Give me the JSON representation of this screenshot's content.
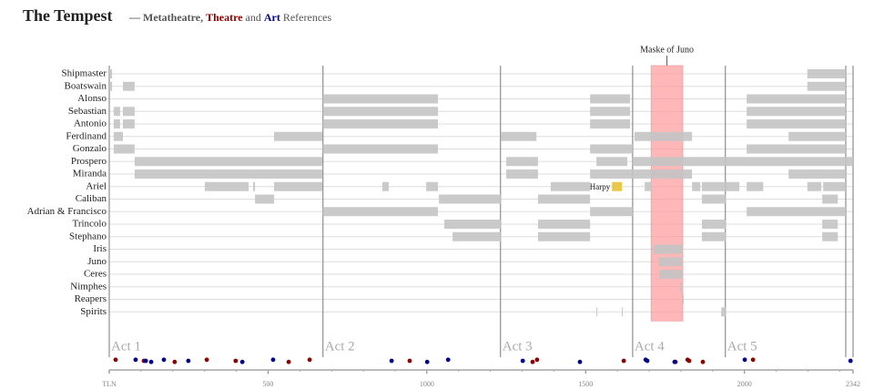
{
  "chart_data": {
    "type": "timeline",
    "title": "The Tempest",
    "subtitle_parts": [
      "— Metatheatre,",
      "and",
      "References"
    ],
    "xlim": [
      0,
      2342
    ],
    "xticks": [
      {
        "value": 0,
        "label": "TLN"
      },
      500,
      1000,
      1500,
      2000,
      2342
    ],
    "acts": [
      "Act 1",
      "Act 2",
      "Act 3",
      "Act 4",
      "Act 5"
    ],
    "act_lines": [
      0,
      673,
      1232,
      1648,
      1940,
      2319
    ],
    "bar_color": "#c4c4c4",
    "characters": [
      {
        "name": "Shipmaster",
        "segments": [
          [
            0,
            9
          ],
          [
            2198,
            2319
          ]
        ]
      },
      {
        "name": "Boatswain",
        "segments": [
          [
            0,
            9
          ],
          [
            43,
            80
          ],
          [
            2198,
            2319
          ]
        ]
      },
      {
        "name": "Alonso",
        "segments": [
          [
            673,
            1035
          ],
          [
            1514,
            1640
          ],
          [
            2007,
            2319
          ]
        ]
      },
      {
        "name": "Sebastian",
        "segments": [
          [
            14,
            34
          ],
          [
            43,
            80
          ],
          [
            673,
            1035
          ],
          [
            1514,
            1640
          ],
          [
            2007,
            2319
          ]
        ]
      },
      {
        "name": "Antonio",
        "segments": [
          [
            14,
            34
          ],
          [
            43,
            80
          ],
          [
            673,
            1035
          ],
          [
            1514,
            1640
          ],
          [
            2007,
            2319
          ]
        ]
      },
      {
        "name": "Ferdinand",
        "segments": [
          [
            14,
            43
          ],
          [
            519,
            671
          ],
          [
            1233,
            1345
          ],
          [
            1654,
            1835
          ],
          [
            2139,
            2319
          ]
        ]
      },
      {
        "name": "Gonzalo",
        "segments": [
          [
            14,
            80
          ],
          [
            673,
            1035
          ],
          [
            1514,
            1648
          ],
          [
            2007,
            2319
          ]
        ]
      },
      {
        "name": "Prospero",
        "segments": [
          [
            80,
            671
          ],
          [
            1250,
            1350
          ],
          [
            1534,
            1631
          ],
          [
            1648,
            2342
          ]
        ]
      },
      {
        "name": "Miranda",
        "segments": [
          [
            80,
            671
          ],
          [
            1250,
            1350
          ],
          [
            1514,
            1835
          ],
          [
            2139,
            2319
          ]
        ]
      },
      {
        "name": "Ariel",
        "segments": [
          [
            301,
            439
          ],
          [
            453,
            459
          ],
          [
            519,
            671
          ],
          [
            860,
            880
          ],
          [
            998,
            1035
          ],
          [
            1390,
            1514
          ],
          [
            1686,
            1709
          ],
          [
            1835,
            1861
          ],
          [
            1866,
            1984
          ],
          [
            2007,
            2059
          ],
          [
            2198,
            2242
          ],
          [
            2248,
            2319
          ]
        ]
      },
      {
        "name": "Caliban",
        "segments": [
          [
            459,
            519
          ],
          [
            1038,
            1233
          ],
          [
            1350,
            1514
          ],
          [
            1866,
            1941
          ],
          [
            2245,
            2294
          ]
        ]
      },
      {
        "name": "Adrian & Francisco",
        "segments": [
          [
            673,
            1035
          ],
          [
            1514,
            1648
          ],
          [
            2007,
            2319
          ]
        ]
      },
      {
        "name": "Trincolo",
        "segments": [
          [
            1055,
            1233
          ],
          [
            1350,
            1514
          ],
          [
            1866,
            1941
          ],
          [
            2245,
            2294
          ]
        ]
      },
      {
        "name": "Stephano",
        "segments": [
          [
            1081,
            1233
          ],
          [
            1350,
            1514
          ],
          [
            1866,
            1941
          ],
          [
            2245,
            2294
          ]
        ]
      },
      {
        "name": "Iris",
        "segments": [
          [
            1714,
            1806
          ]
        ]
      },
      {
        "name": "Juno",
        "segments": [
          [
            1729,
            1806
          ]
        ]
      },
      {
        "name": "Ceres",
        "segments": [
          [
            1732,
            1806
          ]
        ]
      },
      {
        "name": "Nimphes",
        "segments": [
          [
            1798,
            1806
          ]
        ]
      },
      {
        "name": "Reapers",
        "segments": [
          [
            1803,
            1809
          ]
        ]
      },
      {
        "name": "Spirits",
        "segments": [
          [
            1534,
            1537
          ],
          [
            1614,
            1617
          ],
          [
            1927,
            1941
          ]
        ]
      }
    ],
    "highlights": [
      {
        "label": "Maske of Juno",
        "range": [
          1706,
          1806
        ],
        "color": "#ff9999"
      },
      {
        "label": "Harpy",
        "character": 9,
        "range": [
          1583,
          1614
        ],
        "color": "#e8c84a"
      }
    ],
    "series": [
      {
        "name": "Theatre",
        "color": "#8b0000",
        "x": [
          20,
          109,
          206,
          307,
          398,
          565,
          631,
          946,
          1333,
          1347,
          1620,
          1783,
          1821,
          1826,
          1869,
          2027
        ]
      },
      {
        "name": "Art",
        "color": "#00008b",
        "x": [
          83,
          115,
          132,
          172,
          249,
          419,
          516,
          889,
          1001,
          1067,
          1302,
          1482,
          1689,
          1694,
          1780,
          2001,
          2334
        ]
      }
    ]
  }
}
